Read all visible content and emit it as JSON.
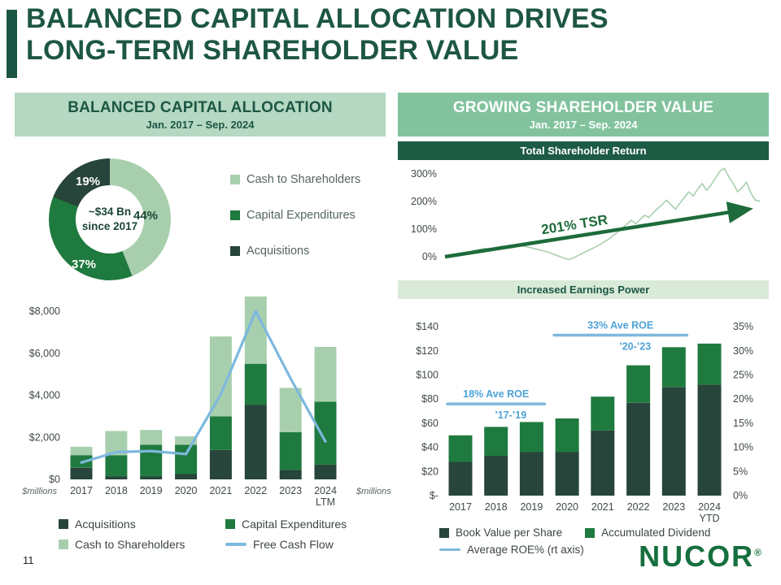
{
  "slide": {
    "title_line1": "BALANCED CAPITAL ALLOCATION DRIVES",
    "title_line2": "LONG-TERM SHAREHOLDER VALUE",
    "page_number": "11",
    "logo_text": "NUCOR",
    "logo_reg": "®"
  },
  "left_panel": {
    "title": "BALANCED CAPITAL ALLOCATION",
    "dates": "Jan. 2017 – Sep. 2024"
  },
  "right_panel": {
    "title": "GROWING SHAREHOLDER VALUE",
    "dates": "Jan. 2017 – Sep. 2024",
    "tsr_band": "Total Shareholder Return",
    "earnings_band": "Increased Earnings Power"
  },
  "colors": {
    "title_green": "#1d5644",
    "band_dark": "#1d5b44",
    "band_pale": "#d9ead9",
    "panel_light": "#b4d8c2",
    "panel_mid": "#82c39e",
    "dark_series": "#27453a",
    "green_series": "#1f7a3f",
    "light_series": "#a8cfad",
    "blue_line": "#7db8de",
    "blue_text": "#4fa3d8",
    "arrow_green": "#1d6b3a"
  },
  "chart_data": [
    {
      "id": "capital_allocation_donut",
      "type": "pie",
      "title": "Balanced Capital Allocation Jan. 2017 – Sep. 2024",
      "center_line1": "~$34 Bn",
      "center_line2": "since 2017",
      "slices": [
        {
          "label": "Cash to Shareholders",
          "value": 44,
          "pct_label": "44%",
          "color": "#a8cfad"
        },
        {
          "label": "Capital Expenditures",
          "value": 37,
          "pct_label": "37%",
          "color": "#1f7a3f"
        },
        {
          "label": "Acquisitions",
          "value": 19,
          "pct_label": "19%",
          "color": "#27453a"
        }
      ]
    },
    {
      "id": "capital_allocation_stacked_bars",
      "type": "bar",
      "categories": [
        "2017",
        "2018",
        "2019",
        "2020",
        "2021",
        "2022",
        "2023",
        "2024"
      ],
      "last_suffix": "LTM",
      "unit_label": "$millions",
      "ylim": [
        0,
        8800
      ],
      "yticks": [
        "$0",
        "$2,000",
        "$4,000",
        "$6,000",
        "$8,000"
      ],
      "series": [
        {
          "name": "Acquisitions",
          "color": "#27453a",
          "values": [
            550,
            150,
            150,
            250,
            1400,
            3550,
            450,
            700
          ]
        },
        {
          "name": "Capital Expenditures",
          "color": "#1f7a3f",
          "values": [
            600,
            1000,
            1500,
            1400,
            1600,
            1950,
            1800,
            3000
          ]
        },
        {
          "name": "Cash to Shareholders",
          "color": "#a8cfad",
          "values": [
            400,
            1150,
            700,
            400,
            3800,
            3200,
            2100,
            2600
          ]
        }
      ],
      "line": {
        "name": "Free Cash Flow",
        "color": "#7db8de",
        "values": [
          800,
          1300,
          1350,
          1200,
          4050,
          8000,
          4800,
          1800
        ]
      }
    },
    {
      "id": "total_shareholder_return",
      "type": "line",
      "title": "Total Shareholder Return",
      "yticks": [
        "0%",
        "100%",
        "200%",
        "300%"
      ],
      "ylim": [
        0,
        300
      ],
      "annotation": "201% TSR",
      "line_color": "#a8cfad",
      "arrow_color": "#1d6b3a",
      "values": [
        0,
        3,
        6,
        9,
        13,
        16,
        20,
        24,
        27,
        30,
        28,
        32,
        35,
        38,
        36,
        40,
        43,
        40,
        37,
        34,
        30,
        26,
        22,
        18,
        12,
        6,
        0,
        -6,
        -10,
        -4,
        4,
        12,
        20,
        28,
        36,
        45,
        55,
        65,
        78,
        90,
        104,
        118,
        132,
        120,
        135,
        150,
        142,
        160,
        175,
        190,
        205,
        188,
        172,
        195,
        215,
        235,
        220,
        245,
        265,
        240,
        260,
        285,
        310,
        320,
        290,
        265,
        235,
        250,
        270,
        230,
        205,
        201
      ]
    },
    {
      "id": "increased_earnings_power",
      "type": "bar",
      "title": "Increased Earnings Power",
      "categories": [
        "2017",
        "2018",
        "2019",
        "2020",
        "2021",
        "2022",
        "2023",
        "2024"
      ],
      "last_suffix": "YTD",
      "ylim": [
        0,
        150
      ],
      "yticks_left": [
        "$-",
        "$20",
        "$40",
        "$60",
        "$80",
        "$100",
        "$120",
        "$140"
      ],
      "yticks_right": [
        "0%",
        "5%",
        "10%",
        "15%",
        "20%",
        "25%",
        "30%",
        "35%"
      ],
      "series": [
        {
          "name": "Book Value per Share",
          "color": "#27453a",
          "values": [
            28,
            33,
            36,
            36,
            54,
            77,
            90,
            92
          ]
        },
        {
          "name": "Accumulated Dividend",
          "color": "#1f7a3f",
          "values": [
            22,
            24,
            25,
            28,
            28,
            31,
            33,
            34
          ]
        }
      ],
      "roe_legend": "Average ROE% (rt axis)",
      "roe_color": "#7db8de",
      "annotations": [
        {
          "label": "18% Ave ROE",
          "range": "’17-’19",
          "span": [
            0,
            2
          ],
          "level": 76
        },
        {
          "label": "33% Ave ROE",
          "range": "’20-’23",
          "span": [
            3,
            6
          ],
          "level": 133
        }
      ]
    }
  ]
}
